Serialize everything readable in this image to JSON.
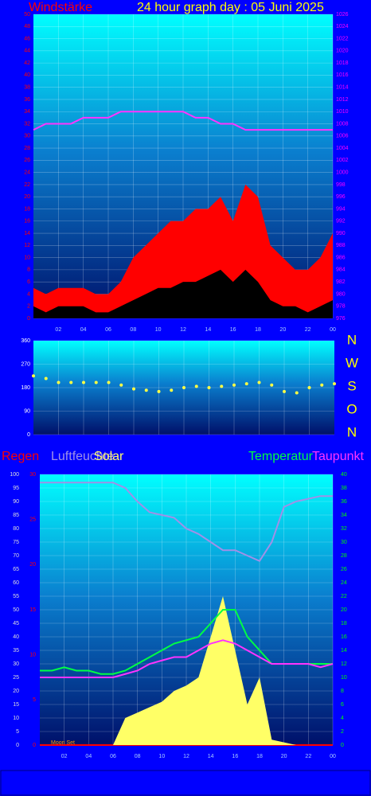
{
  "chart_data": [
    {
      "type": "area",
      "title": "24 hour graph day : 05 Juni 2025",
      "y_label": "Windstärke",
      "x": [
        0,
        1,
        2,
        3,
        4,
        5,
        6,
        7,
        8,
        9,
        10,
        11,
        12,
        13,
        14,
        15,
        16,
        17,
        18,
        19,
        20,
        21,
        22,
        23,
        24
      ],
      "xlim": [
        0,
        24
      ],
      "xticks": [
        {
          "value": 2,
          "label": "02"
        },
        {
          "value": 4,
          "label": "04"
        },
        {
          "value": 6,
          "label": "06"
        },
        {
          "value": 8,
          "label": "08"
        },
        10,
        12,
        14,
        16,
        18,
        20,
        22,
        {
          "value": 24,
          "label": "00"
        }
      ],
      "ylim": [
        0,
        50
      ],
      "yticks": [
        0,
        2,
        4,
        6,
        8,
        10,
        12,
        14,
        16,
        18,
        20,
        22,
        24,
        26,
        28,
        30,
        32,
        34,
        36,
        38,
        40,
        42,
        44,
        46,
        48,
        50
      ],
      "y2lim": [
        976,
        1026
      ],
      "y2ticks": [
        976,
        978,
        980,
        982,
        984,
        986,
        988,
        990,
        992,
        994,
        996,
        998,
        1000,
        1002,
        1004,
        1006,
        1008,
        1010,
        1012,
        1014,
        1016,
        1018,
        1020,
        1022,
        1024,
        1026
      ],
      "yaxis_color": "#ff0000",
      "y2axis_color": "#ff00ff",
      "grid": true,
      "series": [
        {
          "mark": "area",
          "color": "#ff0000",
          "values": [
            5,
            4,
            5,
            5,
            5,
            4,
            4,
            6,
            10,
            12,
            14,
            16,
            16,
            18,
            18,
            20,
            16,
            22,
            20,
            12,
            10,
            8,
            8,
            10,
            14
          ]
        },
        {
          "mark": "area",
          "color": "#000000",
          "values": [
            2,
            1,
            2,
            2,
            2,
            1,
            1,
            2,
            3,
            4,
            5,
            5,
            6,
            6,
            7,
            8,
            6,
            8,
            6,
            3,
            2,
            2,
            1,
            2,
            3
          ]
        },
        {
          "mark": "line",
          "axis": "y2",
          "color": "#ff33ff",
          "values": [
            1007,
            1008,
            1008,
            1008,
            1009,
            1009,
            1009,
            1010,
            1010,
            1010,
            1010,
            1010,
            1010,
            1009,
            1009,
            1008,
            1008,
            1007,
            1007,
            1007,
            1007,
            1007,
            1007,
            1007,
            1007
          ]
        }
      ]
    },
    {
      "type": "scatter",
      "direction_labels": [
        "N",
        "W",
        "S",
        "O",
        "N"
      ],
      "x": [
        0,
        1,
        2,
        3,
        4,
        5,
        6,
        7,
        8,
        9,
        10,
        11,
        12,
        13,
        14,
        15,
        16,
        17,
        18,
        19,
        20,
        21,
        22,
        23,
        24
      ],
      "xlim": [
        0,
        24
      ],
      "ylim": [
        0,
        360
      ],
      "yticks": [
        0,
        90,
        180,
        270,
        360
      ],
      "yaxis_color": "#ffffff",
      "grid": true,
      "series": [
        {
          "mark": "dots",
          "color": "#ffff44",
          "values": [
            225,
            215,
            200,
            200,
            200,
            200,
            200,
            190,
            175,
            170,
            165,
            170,
            180,
            185,
            180,
            185,
            190,
            195,
            200,
            190,
            165,
            160,
            180,
            190,
            195
          ]
        }
      ]
    },
    {
      "type": "line",
      "annotations": [
        "Moon Set"
      ],
      "x": [
        0,
        1,
        2,
        3,
        4,
        5,
        6,
        7,
        8,
        9,
        10,
        11,
        12,
        13,
        14,
        15,
        16,
        17,
        18,
        19,
        20,
        21,
        22,
        23,
        24
      ],
      "xlim": [
        0,
        24
      ],
      "xticks": [
        {
          "value": 2,
          "label": "02"
        },
        {
          "value": 4,
          "label": "04"
        },
        {
          "value": 6,
          "label": "06"
        },
        {
          "value": 8,
          "label": "08"
        },
        10,
        12,
        14,
        16,
        18,
        20,
        22,
        {
          "value": 24,
          "label": "00"
        }
      ],
      "ylim": [
        0,
        100
      ],
      "yticks": [
        0,
        5,
        10,
        15,
        20,
        25,
        30,
        35,
        40,
        45,
        50,
        55,
        60,
        65,
        70,
        75,
        80,
        85,
        90,
        95,
        100
      ],
      "y2lim": [
        0,
        30
      ],
      "y2ticks": [
        0,
        5,
        10,
        15,
        20,
        25,
        30
      ],
      "y3lim": [
        0,
        40
      ],
      "y3ticks": [
        0,
        2,
        4,
        6,
        8,
        10,
        12,
        14,
        16,
        18,
        20,
        22,
        24,
        26,
        28,
        30,
        32,
        34,
        36,
        38,
        40
      ],
      "yaxis_color": "#dddddd",
      "y2axis_color": "#ff0000",
      "y3axis_color": "#00ff00",
      "grid": true,
      "series": [
        {
          "name": "Regen",
          "mark": "line",
          "axis": "y2",
          "color": "#ff0000",
          "values": [
            0,
            0,
            0,
            0,
            0,
            0,
            0,
            0,
            0,
            0,
            0,
            0,
            0,
            0,
            0,
            0,
            0,
            0,
            0,
            0,
            0,
            0,
            0,
            0,
            0
          ]
        },
        {
          "name": "Luftfeuchte",
          "mark": "line",
          "color": "#a090e8",
          "values": [
            97,
            97,
            97,
            97,
            97,
            97,
            97,
            95,
            90,
            86,
            85,
            84,
            80,
            78,
            75,
            72,
            72,
            70,
            68,
            75,
            88,
            90,
            91,
            92,
            92
          ]
        },
        {
          "name": "Solar",
          "mark": "area",
          "color": "#ffff66",
          "values": [
            0,
            0,
            0,
            0,
            0,
            0,
            0,
            10,
            12,
            14,
            16,
            20,
            22,
            25,
            40,
            55,
            35,
            15,
            25,
            2,
            1,
            0,
            0,
            0,
            0
          ]
        },
        {
          "name": "Temperatur",
          "mark": "line",
          "axis": "y3",
          "color": "#00ff44",
          "values": [
            11,
            11,
            11.5,
            11,
            11,
            10.5,
            10.5,
            11,
            12,
            13,
            14,
            15,
            15.5,
            16,
            18,
            20,
            20,
            16,
            14,
            12,
            12,
            12,
            12,
            12,
            12
          ]
        },
        {
          "name": "Taupunkt",
          "mark": "line",
          "axis": "y3",
          "color": "#ff33ff",
          "values": [
            10,
            10,
            10,
            10,
            10,
            10,
            10,
            10.5,
            11,
            12,
            12.5,
            13,
            13,
            14,
            15,
            15.5,
            15,
            14,
            13,
            12,
            12,
            12,
            12,
            11.5,
            12
          ]
        }
      ]
    }
  ]
}
